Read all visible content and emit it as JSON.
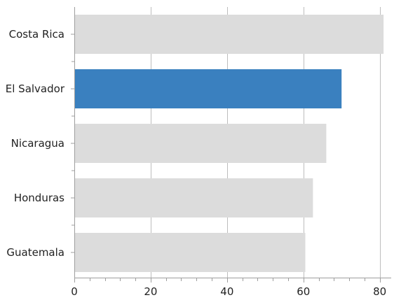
{
  "chart_data": {
    "type": "bar",
    "orientation": "horizontal",
    "categories": [
      "Costa Rica",
      "El Salvador",
      "Nicaragua",
      "Honduras",
      "Guatemala"
    ],
    "values": [
      81,
      70,
      66,
      62.5,
      60.5
    ],
    "highlight_index": 1,
    "xlim": [
      0,
      83
    ],
    "xticks": [
      0,
      20,
      40,
      60,
      80
    ],
    "grid": true,
    "colors": {
      "bar": "#dcdcdc",
      "highlight": "#3a80bf"
    },
    "title": "",
    "xlabel": "",
    "ylabel": ""
  }
}
